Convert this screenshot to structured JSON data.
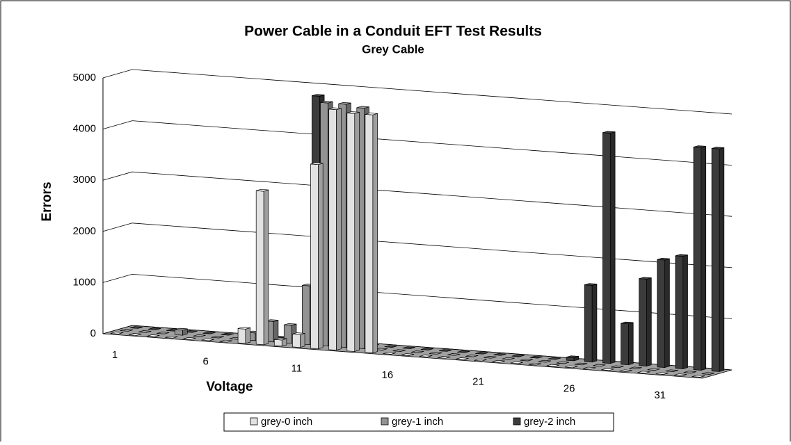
{
  "chart_data": {
    "type": "bar3d",
    "title": "Power Cable in a Conduit EFT Test Results",
    "subtitle": "Grey Cable",
    "x_label": "Voltage",
    "y_label": "Errors",
    "categories": [
      1,
      null,
      null,
      null,
      null,
      6,
      null,
      null,
      null,
      null,
      11,
      null,
      null,
      null,
      null,
      16,
      null,
      null,
      null,
      null,
      21,
      null,
      null,
      null,
      null,
      26,
      null,
      null,
      null,
      null,
      31,
      null,
      null
    ],
    "series": [
      {
        "name": "grey-0 inch",
        "color": "#e2e2e2",
        "values": [
          0,
          0,
          0,
          0,
          0,
          0,
          0,
          280,
          3000,
          120,
          250,
          3600,
          4700,
          4650,
          4650,
          0,
          0,
          0,
          0,
          0,
          0,
          0,
          0,
          0,
          0,
          0,
          0,
          0,
          0,
          0,
          0,
          0,
          0
        ]
      },
      {
        "name": "grey-1 inch",
        "color": "#939393",
        "values": [
          0,
          0,
          0,
          100,
          0,
          0,
          0,
          150,
          400,
          350,
          1150,
          4750,
          4750,
          4700,
          0,
          0,
          0,
          0,
          0,
          0,
          0,
          0,
          0,
          0,
          0,
          0,
          0,
          0,
          0,
          0,
          0,
          0,
          0
        ]
      },
      {
        "name": "grey-2 inch",
        "color": "#3c3c3c",
        "values": [
          0,
          0,
          0,
          0,
          0,
          0,
          0,
          0,
          0,
          0,
          4800,
          0,
          0,
          0,
          0,
          0,
          0,
          0,
          0,
          0,
          0,
          0,
          0,
          0,
          60,
          1500,
          4500,
          800,
          1700,
          2100,
          2200,
          4350,
          4350
        ]
      }
    ],
    "ylim": [
      0,
      5000
    ],
    "yticks": [
      0,
      1000,
      2000,
      3000,
      4000,
      5000
    ],
    "grid": true,
    "legend": "bottom"
  }
}
